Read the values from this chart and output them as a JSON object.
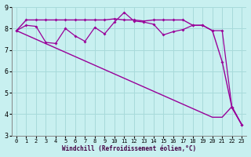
{
  "bg_color": "#c8f0f0",
  "grid_color": "#a8dada",
  "line_color": "#990099",
  "xlabel": "Windchill (Refroidissement éolien,°C)",
  "xlim": [
    -0.5,
    23.5
  ],
  "ylim": [
    3,
    9
  ],
  "yticks": [
    3,
    4,
    5,
    6,
    7,
    8,
    9
  ],
  "xticks": [
    0,
    1,
    2,
    3,
    4,
    5,
    6,
    7,
    8,
    9,
    10,
    11,
    12,
    13,
    14,
    15,
    16,
    17,
    18,
    19,
    20,
    21,
    22,
    23
  ],
  "line1_x": [
    0,
    1,
    2,
    3,
    4,
    5,
    6,
    7,
    8,
    9,
    10,
    11,
    12,
    13,
    14,
    15,
    16,
    17,
    18,
    19,
    20,
    21,
    22,
    23
  ],
  "line1_y": [
    7.9,
    8.4,
    8.4,
    8.4,
    8.4,
    8.4,
    8.4,
    8.4,
    8.4,
    8.4,
    8.45,
    8.4,
    8.4,
    8.35,
    8.4,
    8.4,
    8.4,
    8.4,
    8.15,
    8.15,
    7.9,
    6.45,
    4.3,
    3.5
  ],
  "line2_x": [
    0,
    1,
    2,
    3,
    4,
    5,
    6,
    7,
    8,
    9,
    10,
    11,
    12,
    13,
    14,
    15,
    16,
    17,
    18,
    19,
    20,
    21,
    22,
    23
  ],
  "line2_y": [
    7.9,
    8.15,
    8.1,
    7.35,
    7.3,
    8.0,
    7.65,
    7.4,
    8.05,
    7.75,
    8.3,
    8.75,
    8.35,
    8.3,
    8.2,
    7.7,
    7.85,
    7.95,
    8.15,
    8.15,
    7.9,
    7.9,
    4.3,
    3.5
  ],
  "line3_x": [
    0,
    20,
    21,
    22,
    23
  ],
  "line3_y": [
    7.9,
    3.85,
    3.85,
    4.35,
    3.5
  ]
}
